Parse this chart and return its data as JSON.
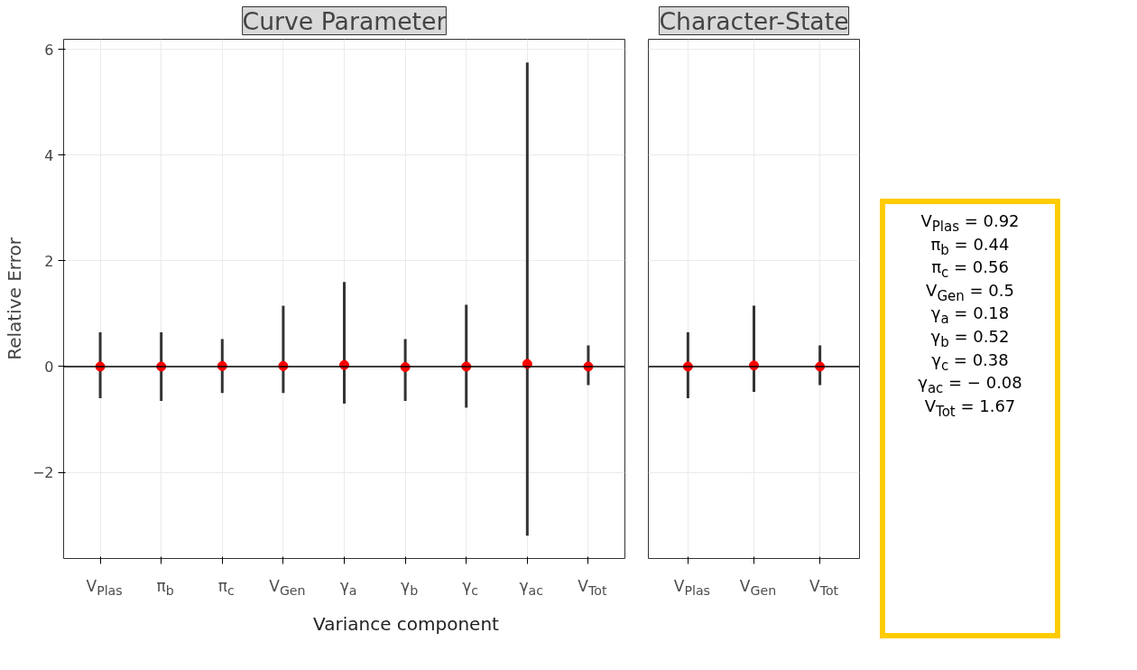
{
  "chart_data": [
    {
      "type": "scatter",
      "title": "Curve Parameter",
      "ylabel": "Relative Error",
      "xlabel": "Variance component",
      "categories": [
        "V$_{Plas}$",
        "π$_{b}$",
        "π$_{c}$",
        "V$_{Gen}$",
        "γ$_{a}$",
        "γ$_{b}$",
        "γ$_{c}$",
        "γ$_{ac}$",
        "V$_{Tot}$"
      ],
      "series": [
        {
          "color": "#ff0000",
          "values": [
            0,
            0,
            0.01,
            0.01,
            0.03,
            -0.01,
            0,
            0.05,
            0
          ],
          "errors": [
            [
              -0.6,
              0.65
            ],
            [
              -0.65,
              0.65
            ],
            [
              -0.5,
              0.52
            ],
            [
              -0.5,
              1.15
            ],
            [
              -0.7,
              1.6
            ],
            [
              -0.65,
              0.52
            ],
            [
              -0.78,
              1.17
            ],
            [
              -3.2,
              5.75
            ],
            [
              -0.35,
              0.4
            ]
          ]
        }
      ],
      "ylim": [
        -3.63,
        6.19
      ],
      "yticks": [
        -2,
        0,
        2,
        4,
        6
      ],
      "grid": true,
      "ref_lines": [
        {
          "axis": "y",
          "value": 0,
          "color": "#000000"
        }
      ],
      "marker": "circle"
    },
    {
      "type": "scatter",
      "title": "Character-State",
      "categories": [
        "V$_{Plas}$",
        "V$_{Gen}$",
        "V$_{Tot}$"
      ],
      "series": [
        {
          "color": "#ff0000",
          "values": [
            0,
            0.02,
            0
          ],
          "errors": [
            [
              -0.6,
              0.65
            ],
            [
              -0.48,
              1.15
            ],
            [
              -0.35,
              0.4
            ]
          ]
        }
      ],
      "ylim": [
        -3.63,
        6.19
      ],
      "yticks": [
        -2,
        0,
        2,
        4,
        6
      ],
      "grid": true,
      "tick_labels": "x",
      "ref_lines": [
        {
          "axis": "y",
          "value": 0,
          "color": "#000000"
        }
      ],
      "marker": "circle"
    },
    {
      "type": "other",
      "annotations": [
        "V$_{Plas}$ = 0.92",
        "π$_{b}$ = 0.44",
        "π$_{c}$ = 0.56",
        "V$_{Gen}$ = 0.5",
        "γ$_{a}$ = 0.18",
        "γ$_{b}$ = 0.52",
        "γ$_{c}$ = 0.38",
        "γ$_{ac}$ = − 0.08",
        "V$_{Tot}$ = 1.67"
      ]
    }
  ]
}
